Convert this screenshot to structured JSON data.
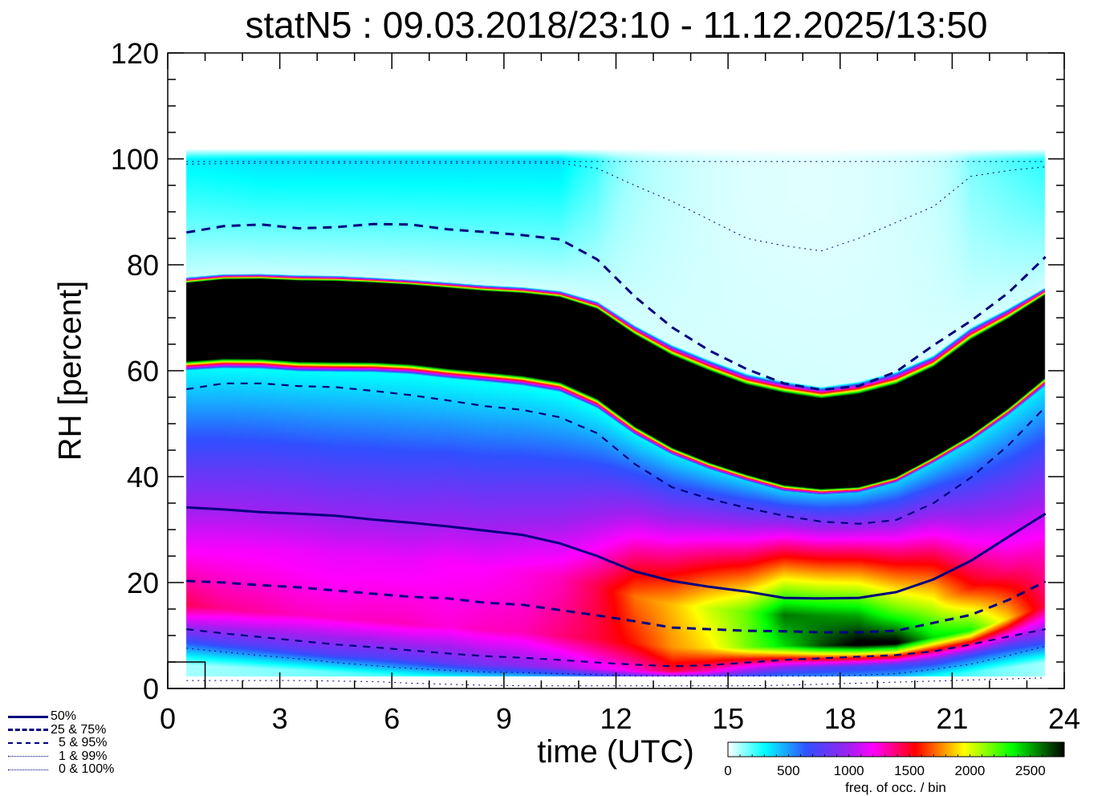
{
  "chart_data": {
    "type": "heatmap",
    "title": "statN5 : 09.03.2018/23:10 - 11.12.2025/13:50",
    "xlabel": "time (UTC)",
    "ylabel": "RH [percent]",
    "xlim": [
      0,
      24
    ],
    "ylim": [
      0,
      120
    ],
    "xticks": [
      "0",
      "3",
      "6",
      "9",
      "12",
      "15",
      "18",
      "21",
      "24"
    ],
    "yticks": [
      "0",
      "20",
      "40",
      "60",
      "80",
      "100",
      "120"
    ],
    "x": [
      0.5,
      1.5,
      2.5,
      3.5,
      4.5,
      5.5,
      6.5,
      7.5,
      8.5,
      9.5,
      10.5,
      11.5,
      12.5,
      13.5,
      14.5,
      15.5,
      16.5,
      17.5,
      18.5,
      19.5,
      20.5,
      21.5,
      22.5,
      23.5
    ],
    "series": [
      {
        "name": "0%",
        "style": "dotted",
        "values": [
          1.5,
          1.5,
          1.5,
          1.5,
          1.4,
          1.3,
          1.0,
          0.8,
          0.6,
          0.5,
          0.5,
          0.5,
          0.5,
          0.5,
          0.5,
          0.5,
          0.6,
          0.8,
          1.0,
          1.2,
          1.4,
          1.6,
          1.8,
          2.0
        ]
      },
      {
        "name": "1%",
        "style": "dotted",
        "values": [
          7.6,
          6.9,
          6.2,
          5.6,
          4.9,
          4.3,
          3.8,
          3.4,
          3.1,
          3.0,
          2.8,
          2.6,
          2.4,
          2.4,
          2.4,
          2.4,
          2.4,
          2.4,
          2.5,
          2.8,
          3.6,
          4.6,
          6.2,
          8.0
        ]
      },
      {
        "name": "5%",
        "style": "dashed",
        "values": [
          11.2,
          10.4,
          9.7,
          9.0,
          8.3,
          7.8,
          7.2,
          6.6,
          6.1,
          5.8,
          5.4,
          4.9,
          4.5,
          4.2,
          4.4,
          4.9,
          5.4,
          5.7,
          6.0,
          6.3,
          7.0,
          8.3,
          9.8,
          11.2
        ]
      },
      {
        "name": "25%",
        "style": "dashed-thick",
        "values": [
          20.3,
          20.0,
          19.5,
          19.1,
          18.5,
          17.9,
          17.3,
          17.0,
          16.2,
          15.8,
          14.8,
          13.8,
          12.7,
          11.5,
          11.2,
          10.9,
          10.8,
          10.6,
          10.6,
          10.9,
          12.4,
          13.9,
          16.7,
          20.2
        ]
      },
      {
        "name": "50%",
        "style": "solid",
        "values": [
          34.2,
          33.8,
          33.3,
          33.0,
          32.6,
          31.9,
          31.3,
          30.6,
          29.8,
          29.0,
          27.4,
          25.0,
          22.1,
          20.3,
          19.2,
          18.3,
          17.1,
          17.0,
          17.1,
          18.2,
          20.6,
          24.1,
          28.6,
          33.0
        ]
      },
      {
        "name": "75%",
        "style": "dashed-thick",
        "values": [
          86.1,
          87.3,
          87.6,
          86.9,
          87.1,
          87.7,
          87.6,
          86.7,
          86.2,
          85.6,
          84.8,
          81.0,
          74.0,
          68.2,
          63.8,
          60.3,
          57.6,
          56.4,
          57.1,
          59.8,
          64.8,
          69.4,
          74.7,
          81.5
        ]
      },
      {
        "name": "95%",
        "style": "dashed",
        "values": [
          56.5,
          57.6,
          57.6,
          57.1,
          56.9,
          56.2,
          55.4,
          54.4,
          53.3,
          52.6,
          51.2,
          48.2,
          42.4,
          38.0,
          35.8,
          34.1,
          32.6,
          31.5,
          31.1,
          31.8,
          35.0,
          39.8,
          45.9,
          53.2
        ]
      },
      {
        "name": "99%",
        "style": "dotted",
        "values": [
          99.0,
          99.1,
          99.2,
          99.2,
          99.2,
          99.2,
          99.2,
          99.2,
          99.2,
          99.2,
          99.2,
          98.2,
          95.0,
          92.0,
          88.5,
          85.0,
          83.6,
          82.6,
          85.0,
          88.0,
          91.0,
          96.7,
          97.8,
          98.5
        ]
      },
      {
        "name": "100%",
        "style": "dotted",
        "values": [
          99.5,
          99.5,
          99.5,
          99.5,
          99.5,
          99.5,
          99.5,
          99.5,
          99.5,
          99.5,
          99.5,
          99.5,
          99.5,
          99.5,
          99.5,
          99.5,
          99.5,
          99.5,
          99.5,
          99.5,
          99.5,
          99.5,
          99.5,
          99.5
        ]
      }
    ],
    "legend": {
      "placement": "bottom-left",
      "entries": [
        "50%",
        "25 &  75%",
        "5 &  95%",
        "1 &  99%",
        "0 & 100%"
      ]
    },
    "colorbar": {
      "label": "freq. of occ. / bin",
      "range": [
        0,
        2780
      ],
      "ticks": [
        "0",
        "500",
        "1000",
        "1500",
        "2000",
        "2500"
      ],
      "stops": [
        {
          "v": 0,
          "color": "#ffffff"
        },
        {
          "v": 300,
          "color": "#00ffff"
        },
        {
          "v": 650,
          "color": "#3050ff"
        },
        {
          "v": 1000,
          "color": "#a020f0"
        },
        {
          "v": 1200,
          "color": "#ff00ff"
        },
        {
          "v": 1550,
          "color": "#ff0000"
        },
        {
          "v": 1750,
          "color": "#ff8000"
        },
        {
          "v": 1950,
          "color": "#ffff00"
        },
        {
          "v": 2350,
          "color": "#00ff00"
        },
        {
          "v": 2780,
          "color": "#000000"
        }
      ]
    },
    "line_color": "#000080"
  }
}
